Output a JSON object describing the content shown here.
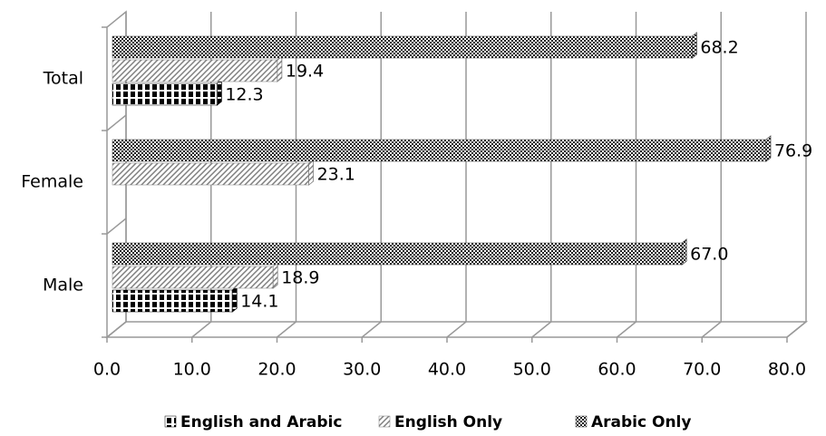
{
  "chart_data": {
    "type": "bar",
    "orientation": "horizontal",
    "categories": [
      "Male",
      "Female",
      "Total"
    ],
    "series": [
      {
        "name": "English and Arabic",
        "color": "#000000",
        "values": [
          14.1,
          null,
          12.3
        ],
        "value_labels": [
          "14.1",
          null,
          "12.3"
        ]
      },
      {
        "name": "English Only",
        "color": "#7f7f7f",
        "values": [
          18.9,
          23.1,
          19.4
        ],
        "value_labels": [
          "18.9",
          "23.1",
          "19.4"
        ]
      },
      {
        "name": "Arabic Only",
        "color": "#404040",
        "values": [
          67.0,
          76.9,
          68.2
        ],
        "value_labels": [
          "67.0",
          "76.9",
          "68.2"
        ]
      }
    ],
    "xlim": [
      0,
      80
    ],
    "xticks": [
      {
        "value": 0,
        "label": "0.0"
      },
      {
        "value": 10,
        "label": "10.0"
      },
      {
        "value": 20,
        "label": "20.0"
      },
      {
        "value": 30,
        "label": "30.0"
      },
      {
        "value": 40,
        "label": "40.0"
      },
      {
        "value": 50,
        "label": "50.0"
      },
      {
        "value": 60,
        "label": "60.0"
      },
      {
        "value": 70,
        "label": "70.0"
      },
      {
        "value": 80,
        "label": "80.0"
      }
    ],
    "grid": true,
    "legend": "bottom"
  }
}
